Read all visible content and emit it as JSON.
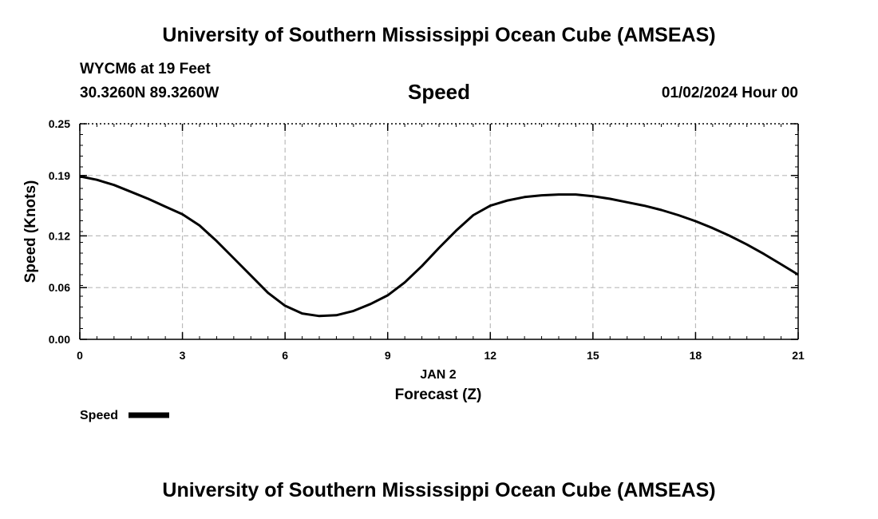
{
  "header": {
    "title": "University of Southern Mississippi Ocean Cube (AMSEAS)",
    "station": "WYCM6 at 19 Feet",
    "coords": "30.3260N  89.3260W",
    "datetime": "01/02/2024 Hour 00"
  },
  "footer": {
    "title": "University of Southern Mississippi Ocean Cube (AMSEAS)"
  },
  "chart_data": {
    "type": "line",
    "title": "Speed",
    "xlabel": "Forecast (Z)",
    "xlabel_date": "JAN 2",
    "ylabel": "Speed (Knots)",
    "xlim": [
      0,
      21
    ],
    "ylim": [
      0,
      0.25
    ],
    "x_ticks": [
      0,
      3,
      6,
      9,
      12,
      15,
      18,
      21
    ],
    "x_tick_labels": [
      "0",
      "3",
      "6",
      "9",
      "12",
      "15",
      "18",
      "21"
    ],
    "y_ticks": [
      0,
      0.06,
      0.12,
      0.19,
      0.25
    ],
    "y_tick_labels": [
      "0.00",
      "0.06",
      "0.12",
      "0.19",
      "0.25"
    ],
    "grid": true,
    "legend_position": "bottom-left",
    "series": [
      {
        "name": "Speed",
        "color": "#000000",
        "x": [
          0,
          0.5,
          1,
          1.5,
          2,
          2.5,
          3,
          3.5,
          4,
          4.5,
          5,
          5.5,
          6,
          6.5,
          7,
          7.5,
          8,
          8.5,
          9,
          9.5,
          10,
          10.5,
          11,
          11.5,
          12,
          12.5,
          13,
          13.5,
          14,
          14.5,
          15,
          15.5,
          16,
          16.5,
          17,
          17.5,
          18,
          18.5,
          19,
          19.5,
          20,
          20.5,
          21
        ],
        "values": [
          0.189,
          0.185,
          0.179,
          0.171,
          0.163,
          0.154,
          0.145,
          0.132,
          0.114,
          0.094,
          0.074,
          0.054,
          0.039,
          0.03,
          0.027,
          0.028,
          0.033,
          0.041,
          0.051,
          0.066,
          0.085,
          0.106,
          0.126,
          0.144,
          0.155,
          0.161,
          0.165,
          0.167,
          0.168,
          0.168,
          0.166,
          0.163,
          0.159,
          0.155,
          0.15,
          0.144,
          0.137,
          0.129,
          0.12,
          0.11,
          0.099,
          0.087,
          0.075
        ]
      }
    ]
  }
}
